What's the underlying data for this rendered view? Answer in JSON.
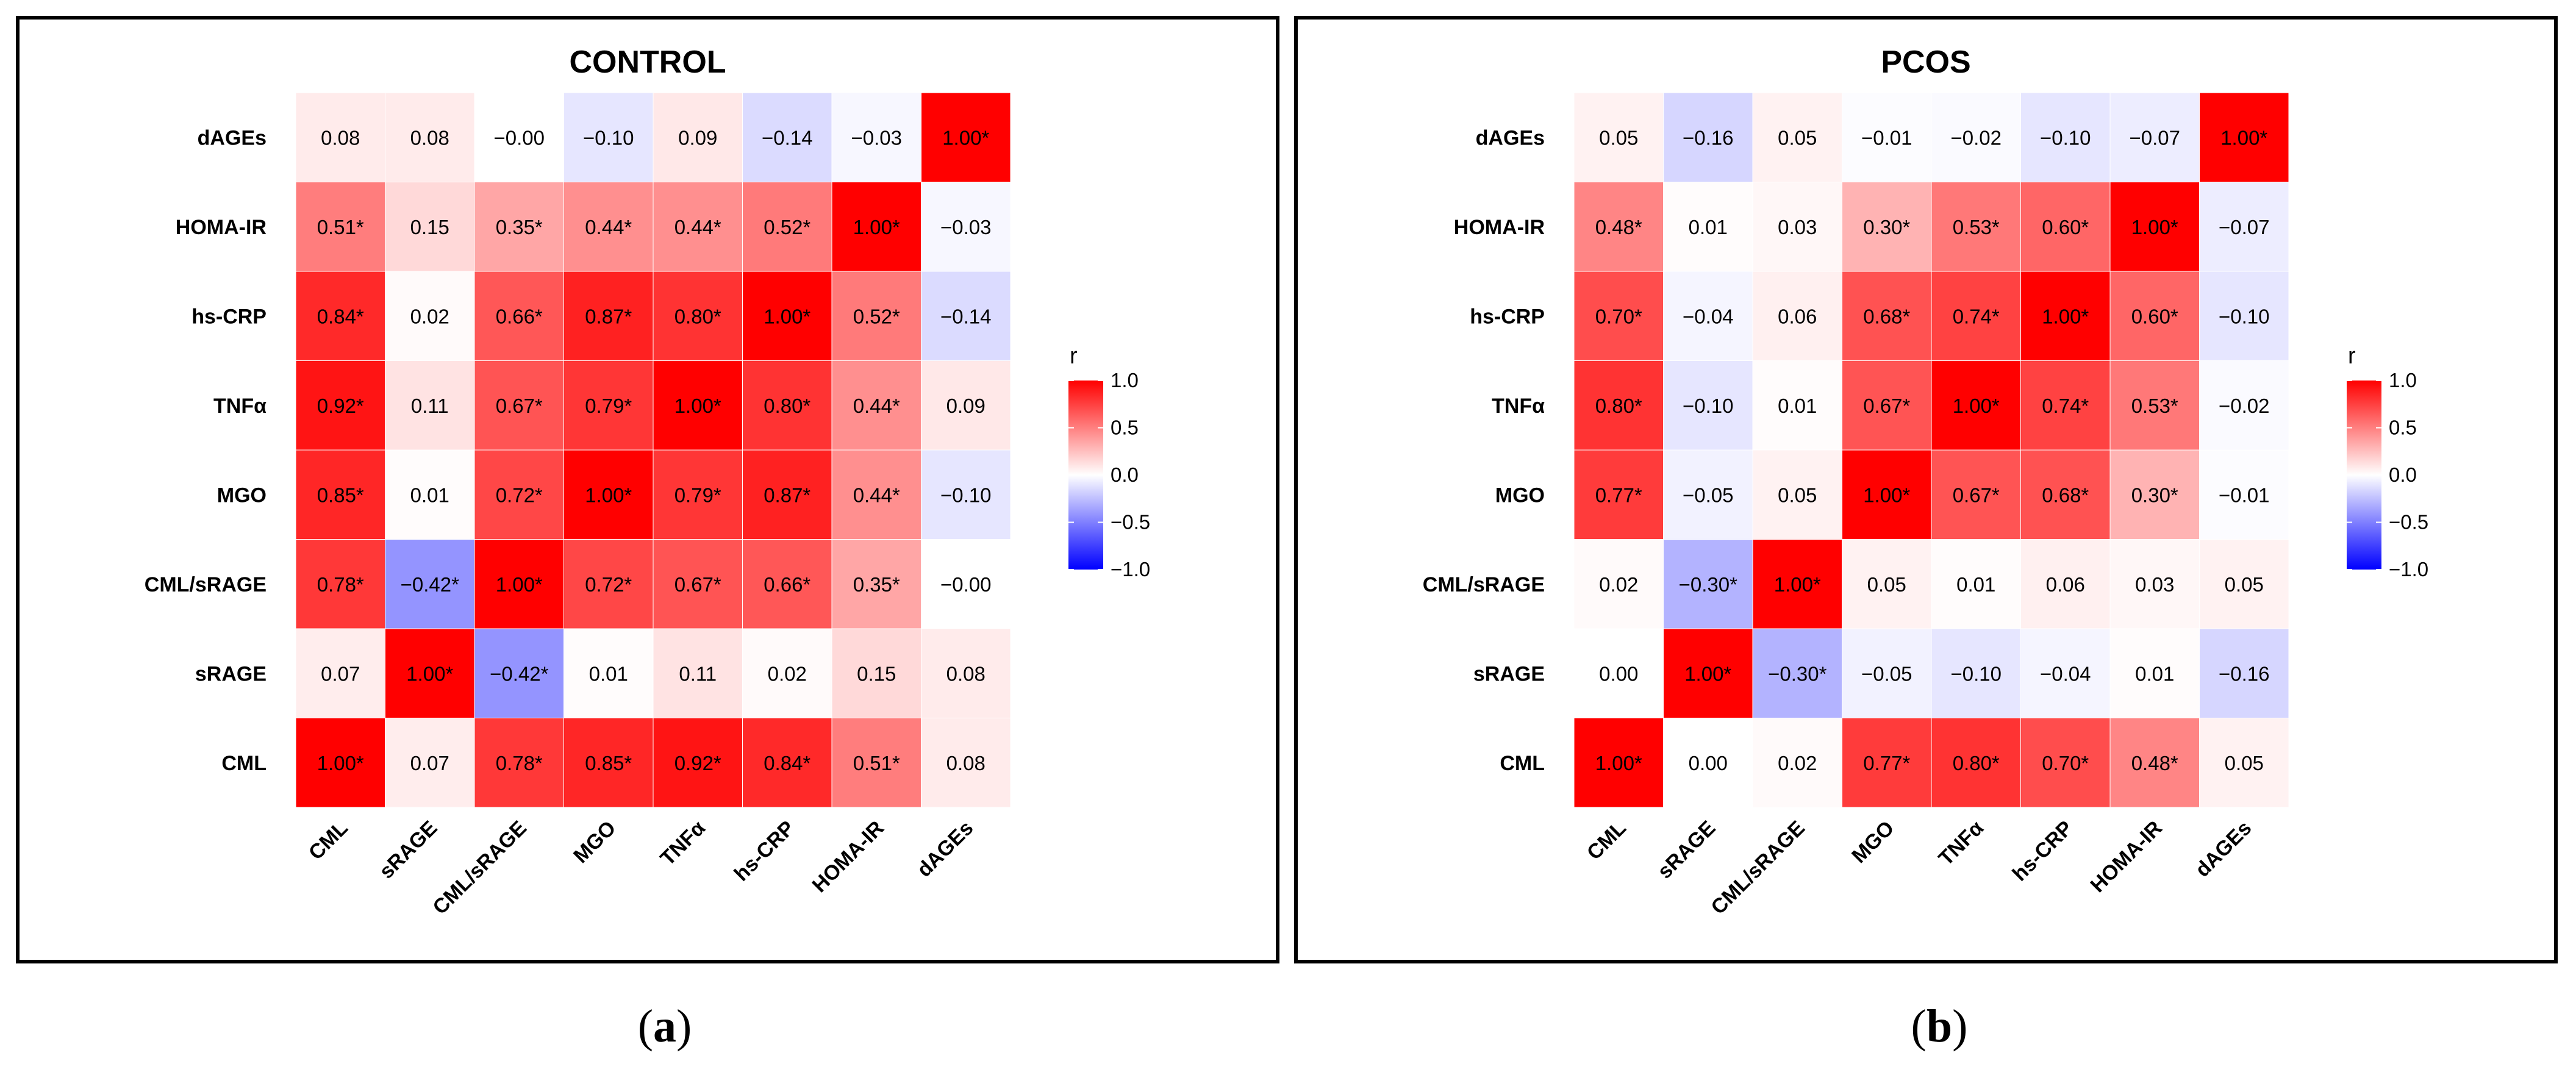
{
  "figure": {
    "caption_a_letter": "a",
    "caption_b_letter": "b"
  },
  "chart_data": [
    {
      "type": "heatmap",
      "title": "CONTROL",
      "variables": [
        "CML",
        "sRAGE",
        "CML/sRAGE",
        "MGO",
        "TNFα",
        "hs-CRP",
        "HOMA-IR",
        "dAGEs"
      ],
      "row_order_top_to_bottom": [
        "dAGEs",
        "HOMA-IR",
        "hs-CRP",
        "TNFα",
        "MGO",
        "CML/sRAGE",
        "sRAGE",
        "CML"
      ],
      "labels_by_row_top_to_bottom": [
        [
          "0.08",
          "0.08",
          "−0.00",
          "−0.10",
          "0.09",
          "−0.14",
          "−0.03",
          "1.00*"
        ],
        [
          "0.51*",
          "0.15",
          "0.35*",
          "0.44*",
          "0.44*",
          "0.52*",
          "1.00*",
          "−0.03"
        ],
        [
          "0.84*",
          "0.02",
          "0.66*",
          "0.87*",
          "0.80*",
          "1.00*",
          "0.52*",
          "−0.14"
        ],
        [
          "0.92*",
          "0.11",
          "0.67*",
          "0.79*",
          "1.00*",
          "0.80*",
          "0.44*",
          "0.09"
        ],
        [
          "0.85*",
          "0.01",
          "0.72*",
          "1.00*",
          "0.79*",
          "0.87*",
          "0.44*",
          "−0.10"
        ],
        [
          "0.78*",
          "−0.42*",
          "1.00*",
          "0.72*",
          "0.67*",
          "0.66*",
          "0.35*",
          "−0.00"
        ],
        [
          "0.07",
          "1.00*",
          "−0.42*",
          "0.01",
          "0.11",
          "0.02",
          "0.15",
          "0.08"
        ],
        [
          "1.00*",
          "0.07",
          "0.78*",
          "0.85*",
          "0.92*",
          "0.84*",
          "0.51*",
          "0.08"
        ]
      ],
      "values_by_row_top_to_bottom": [
        [
          0.08,
          0.08,
          -0.0,
          -0.1,
          0.09,
          -0.14,
          -0.03,
          1.0
        ],
        [
          0.51,
          0.15,
          0.35,
          0.44,
          0.44,
          0.52,
          1.0,
          -0.03
        ],
        [
          0.84,
          0.02,
          0.66,
          0.87,
          0.8,
          1.0,
          0.52,
          -0.14
        ],
        [
          0.92,
          0.11,
          0.67,
          0.79,
          1.0,
          0.8,
          0.44,
          0.09
        ],
        [
          0.85,
          0.01,
          0.72,
          1.0,
          0.79,
          0.87,
          0.44,
          -0.1
        ],
        [
          0.78,
          -0.42,
          1.0,
          0.72,
          0.67,
          0.66,
          0.35,
          -0.0
        ],
        [
          0.07,
          1.0,
          -0.42,
          0.01,
          0.11,
          0.02,
          0.15,
          0.08
        ],
        [
          1.0,
          0.07,
          0.78,
          0.85,
          0.92,
          0.84,
          0.51,
          0.08
        ]
      ],
      "legend": {
        "title": "r",
        "ticks": [
          "1.0",
          "0.5",
          "0.0",
          "−0.5",
          "−1.0"
        ],
        "range": [
          -1.0,
          1.0
        ],
        "colors": {
          "low": "#0000ff",
          "mid": "#ffffff",
          "high": "#ff0000"
        }
      }
    },
    {
      "type": "heatmap",
      "title": "PCOS",
      "variables": [
        "CML",
        "sRAGE",
        "CML/sRAGE",
        "MGO",
        "TNFα",
        "hs-CRP",
        "HOMA-IR",
        "dAGEs"
      ],
      "row_order_top_to_bottom": [
        "dAGEs",
        "HOMA-IR",
        "hs-CRP",
        "TNFα",
        "MGO",
        "CML/sRAGE",
        "sRAGE",
        "CML"
      ],
      "labels_by_row_top_to_bottom": [
        [
          "0.05",
          "−0.16",
          "0.05",
          "−0.01",
          "−0.02",
          "−0.10",
          "−0.07",
          "1.00*"
        ],
        [
          "0.48*",
          "0.01",
          "0.03",
          "0.30*",
          "0.53*",
          "0.60*",
          "1.00*",
          "−0.07"
        ],
        [
          "0.70*",
          "−0.04",
          "0.06",
          "0.68*",
          "0.74*",
          "1.00*",
          "0.60*",
          "−0.10"
        ],
        [
          "0.80*",
          "−0.10",
          "0.01",
          "0.67*",
          "1.00*",
          "0.74*",
          "0.53*",
          "−0.02"
        ],
        [
          "0.77*",
          "−0.05",
          "0.05",
          "1.00*",
          "0.67*",
          "0.68*",
          "0.30*",
          "−0.01"
        ],
        [
          "0.02",
          "−0.30*",
          "1.00*",
          "0.05",
          "0.01",
          "0.06",
          "0.03",
          "0.05"
        ],
        [
          "0.00",
          "1.00*",
          "−0.30*",
          "−0.05",
          "−0.10",
          "−0.04",
          "0.01",
          "−0.16"
        ],
        [
          "1.00*",
          "0.00",
          "0.02",
          "0.77*",
          "0.80*",
          "0.70*",
          "0.48*",
          "0.05"
        ]
      ],
      "values_by_row_top_to_bottom": [
        [
          0.05,
          -0.16,
          0.05,
          -0.01,
          -0.02,
          -0.1,
          -0.07,
          1.0
        ],
        [
          0.48,
          0.01,
          0.03,
          0.3,
          0.53,
          0.6,
          1.0,
          -0.07
        ],
        [
          0.7,
          -0.04,
          0.06,
          0.68,
          0.74,
          1.0,
          0.6,
          -0.1
        ],
        [
          0.8,
          -0.1,
          0.01,
          0.67,
          1.0,
          0.74,
          0.53,
          -0.02
        ],
        [
          0.77,
          -0.05,
          0.05,
          1.0,
          0.67,
          0.68,
          0.3,
          -0.01
        ],
        [
          0.02,
          -0.3,
          1.0,
          0.05,
          0.01,
          0.06,
          0.03,
          0.05
        ],
        [
          0.0,
          1.0,
          -0.3,
          -0.05,
          -0.1,
          -0.04,
          0.01,
          -0.16
        ],
        [
          1.0,
          0.0,
          0.02,
          0.77,
          0.8,
          0.7,
          0.48,
          0.05
        ]
      ],
      "legend": {
        "title": "r",
        "ticks": [
          "1.0",
          "0.5",
          "0.0",
          "−0.5",
          "−1.0"
        ],
        "range": [
          -1.0,
          1.0
        ],
        "colors": {
          "low": "#0000ff",
          "mid": "#ffffff",
          "high": "#ff0000"
        }
      }
    }
  ]
}
